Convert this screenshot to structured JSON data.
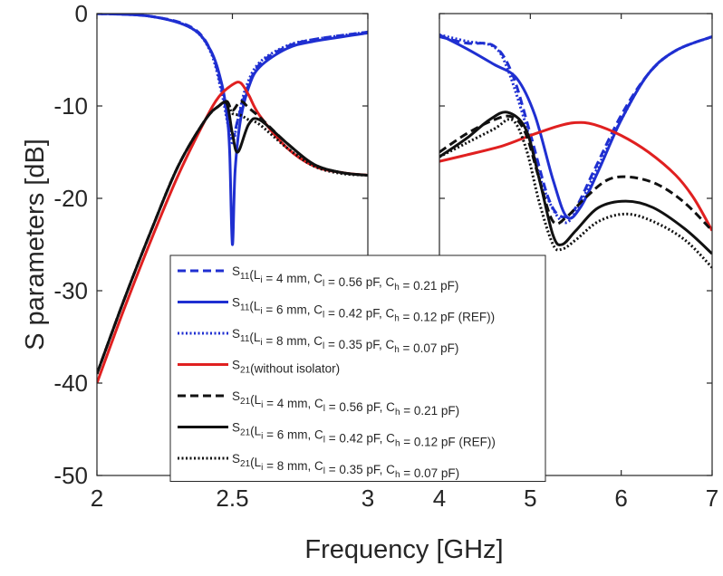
{
  "chart_data": {
    "type": "line",
    "ylabel": "S parameters [dB]",
    "xlabel": "Frequency [GHz]",
    "ylim": [
      -50,
      0
    ],
    "yticks": [
      "0",
      "-10",
      "-20",
      "-30",
      "-40",
      "-50"
    ],
    "grid": false,
    "legend_position": "bottom-center",
    "panels": [
      {
        "xlim": [
          2,
          3
        ],
        "xticks": [
          "2",
          "2.5",
          "3"
        ],
        "series": [
          {
            "name": "S11 (Li = 4 mm, Cl = 0.56 pF, Ch = 0.21 pF)",
            "color": "#1f2fd1",
            "dash": "dashed",
            "x": [
              2,
              2.2,
              2.35,
              2.42,
              2.46,
              2.48,
              2.5,
              2.52,
              2.55,
              2.6,
              2.7,
              2.8,
              3.0
            ],
            "y": [
              0,
              -0.3,
              -1.5,
              -4,
              -8,
              -11,
              -13.5,
              -11.5,
              -8.5,
              -5.5,
              -3.6,
              -2.8,
              -2
            ]
          },
          {
            "name": "S11 (Li = 6 mm, Cl = 0.42 pF, Ch = 0.12 pF (REF))",
            "color": "#1f2fd1",
            "dash": "solid",
            "x": [
              2,
              2.2,
              2.35,
              2.42,
              2.46,
              2.48,
              2.49,
              2.5,
              2.51,
              2.53,
              2.56,
              2.6,
              2.7,
              2.8,
              3.0
            ],
            "y": [
              0,
              -0.3,
              -1.6,
              -4,
              -7.5,
              -11,
              -15,
              -25,
              -17,
              -11.5,
              -8,
              -5.8,
              -3.8,
              -3,
              -2.1
            ]
          },
          {
            "name": "S11 (Li = 8 mm, Cl = 0.35 pF, Ch = 0.07 pF)",
            "color": "#1f2fd1",
            "dash": "dotted",
            "x": [
              2,
              2.2,
              2.35,
              2.42,
              2.46,
              2.48,
              2.5,
              2.52,
              2.55,
              2.6,
              2.7,
              2.8,
              3.0
            ],
            "y": [
              0,
              -0.3,
              -1.6,
              -4.2,
              -8.5,
              -11.5,
              -14,
              -11.5,
              -8,
              -5.3,
              -3.5,
              -2.8,
              -2
            ]
          },
          {
            "name": "S21 (without isolator)",
            "color": "#e02020",
            "dash": "solid",
            "x": [
              2,
              2.1,
              2.2,
              2.3,
              2.4,
              2.45,
              2.5,
              2.53,
              2.56,
              2.6,
              2.7,
              2.8,
              2.9,
              3.0
            ],
            "y": [
              -40,
              -32,
              -24.5,
              -17.5,
              -11.5,
              -9,
              -7.7,
              -7.5,
              -8.8,
              -11,
              -14.5,
              -16.5,
              -17.2,
              -17.5
            ]
          },
          {
            "name": "S21 (Li = 4 mm, Cl = 0.56 pF, Ch = 0.21 pF)",
            "color": "#111111",
            "dash": "dashed",
            "x": [
              2,
              2.1,
              2.2,
              2.3,
              2.4,
              2.45,
              2.48,
              2.5,
              2.53,
              2.56,
              2.6,
              2.7,
              2.8,
              2.9,
              3.0
            ],
            "y": [
              -39,
              -31,
              -23.5,
              -16.5,
              -11.5,
              -10,
              -9.5,
              -10.5,
              -9.5,
              -10.2,
              -11.2,
              -14,
              -16.3,
              -17.2,
              -17.5
            ]
          },
          {
            "name": "S21 (Li = 6 mm, Cl = 0.42 pF, Ch = 0.12 pF (REF))",
            "color": "#111111",
            "dash": "solid",
            "x": [
              2,
              2.1,
              2.2,
              2.3,
              2.4,
              2.45,
              2.48,
              2.5,
              2.52,
              2.56,
              2.6,
              2.7,
              2.8,
              2.9,
              3.0
            ],
            "y": [
              -39,
              -31,
              -23.5,
              -16.5,
              -11.5,
              -10,
              -9.8,
              -13,
              -15,
              -12,
              -11.5,
              -14,
              -16.3,
              -17.2,
              -17.5
            ]
          },
          {
            "name": "S21 (Li = 8 mm, Cl = 0.35 pF, Ch = 0.07 pF)",
            "color": "#111111",
            "dash": "dotted",
            "x": [
              2,
              2.1,
              2.2,
              2.3,
              2.4,
              2.45,
              2.48,
              2.5,
              2.53,
              2.56,
              2.6,
              2.7,
              2.8,
              2.9,
              3.0
            ],
            "y": [
              -39,
              -31,
              -23.5,
              -16.5,
              -11.5,
              -10,
              -9.6,
              -10.8,
              -11,
              -11.5,
              -12,
              -14.5,
              -16.5,
              -17.3,
              -17.5
            ]
          }
        ]
      },
      {
        "xlim": [
          4,
          7
        ],
        "xticks": [
          "4",
          "5",
          "6",
          "7"
        ],
        "series": [
          {
            "name": "S11 (Li = 4 mm, Cl = 0.56 pF, Ch = 0.21 pF)",
            "color": "#1f2fd1",
            "dash": "dashed",
            "x": [
              4,
              4.3,
              4.6,
              4.8,
              5.0,
              5.2,
              5.35,
              5.5,
              5.7,
              6.0,
              6.3,
              6.6,
              7.0
            ],
            "y": [
              -2.5,
              -3.2,
              -3.5,
              -6.5,
              -13,
              -20,
              -22,
              -21,
              -17,
              -11,
              -6.5,
              -4,
              -2.5
            ]
          },
          {
            "name": "S11 (Li = 6 mm, Cl = 0.42 pF, Ch = 0.12 pF (REF))",
            "color": "#1f2fd1",
            "dash": "solid",
            "x": [
              4,
              4.3,
              4.6,
              4.85,
              5.05,
              5.25,
              5.4,
              5.55,
              5.75,
              6.0,
              6.3,
              6.6,
              7.0
            ],
            "y": [
              -2.3,
              -3.8,
              -5.5,
              -7,
              -11,
              -18,
              -22,
              -21,
              -17,
              -11.5,
              -6.5,
              -4,
              -2.5
            ]
          },
          {
            "name": "S11 (Li = 8 mm, Cl = 0.35 pF, Ch = 0.07 pF)",
            "color": "#1f2fd1",
            "dash": "dotted",
            "x": [
              4,
              4.3,
              4.6,
              4.75,
              4.95,
              5.15,
              5.35,
              5.5,
              5.7,
              6.0,
              6.3,
              6.6,
              7.0
            ],
            "y": [
              -2.3,
              -3,
              -3.6,
              -6,
              -12,
              -19,
              -22.5,
              -21.5,
              -17.5,
              -11.5,
              -6.5,
              -4,
              -2.5
            ]
          },
          {
            "name": "S21 (without isolator)",
            "color": "#e02020",
            "dash": "solid",
            "x": [
              4,
              4.3,
              4.7,
              5.0,
              5.3,
              5.5,
              5.7,
              6.0,
              6.3,
              6.6,
              6.8,
              7.0
            ],
            "y": [
              -16,
              -15.3,
              -14.3,
              -13.2,
              -12.2,
              -11.8,
              -12,
              -13.2,
              -15,
              -17.5,
              -20,
              -23.5
            ]
          },
          {
            "name": "S21 (Li = 4 mm, Cl = 0.56 pF, Ch = 0.21 pF)",
            "color": "#111111",
            "dash": "dashed",
            "x": [
              4,
              4.3,
              4.6,
              4.8,
              4.95,
              5.1,
              5.25,
              5.4,
              5.6,
              5.85,
              6.1,
              6.4,
              6.7,
              7.0
            ],
            "y": [
              -15,
              -13,
              -11.5,
              -11.2,
              -13,
              -18,
              -22.5,
              -22,
              -20,
              -18,
              -17.7,
              -18.5,
              -20.5,
              -23.5
            ]
          },
          {
            "name": "S21 (Li = 6 mm, Cl = 0.42 pF, Ch = 0.12 pF (REF))",
            "color": "#111111",
            "dash": "solid",
            "x": [
              4,
              4.3,
              4.55,
              4.75,
              4.95,
              5.1,
              5.25,
              5.35,
              5.5,
              5.75,
              6.05,
              6.35,
              6.7,
              7.0
            ],
            "y": [
              -15.5,
              -13.5,
              -11.5,
              -10.7,
              -12.5,
              -18,
              -24,
              -25,
              -23.5,
              -21,
              -20.3,
              -21,
              -23.3,
              -26
            ]
          },
          {
            "name": "S21 (Li = 8 mm, Cl = 0.35 pF, Ch = 0.07 pF)",
            "color": "#111111",
            "dash": "dotted",
            "x": [
              4,
              4.3,
              4.6,
              4.8,
              4.95,
              5.1,
              5.25,
              5.35,
              5.5,
              5.75,
              6.05,
              6.35,
              6.7,
              7.0
            ],
            "y": [
              -15.5,
              -14,
              -12.5,
              -11.5,
              -14.5,
              -20.5,
              -25,
              -25.5,
              -24.5,
              -22.5,
              -21.7,
              -22.5,
              -24.5,
              -27.5
            ]
          }
        ]
      }
    ],
    "legend": [
      {
        "color": "#1f2fd1",
        "dash": "dashed",
        "sym": "S",
        "sub": "11",
        "text": "(L",
        "isub": "i",
        "text2": " = 4 mm, C",
        "lsub": "l",
        "text3": " = 0.56 pF, C",
        "hsub": "h",
        "text4": " = 0.21 pF)"
      },
      {
        "color": "#1f2fd1",
        "dash": "solid",
        "sym": "S",
        "sub": "11",
        "text": "(L",
        "isub": "i",
        "text2": " = 6 mm, C",
        "lsub": "l",
        "text3": " = 0.42 pF, C",
        "hsub": "h",
        "text4": " = 0.12 pF (REF))"
      },
      {
        "color": "#1f2fd1",
        "dash": "dotted",
        "sym": "S",
        "sub": "11",
        "text": "(L",
        "isub": "i",
        "text2": " = 8 mm, C",
        "lsub": "l",
        "text3": " = 0.35 pF, C",
        "hsub": "h",
        "text4": " = 0.07 pF)"
      },
      {
        "color": "#e02020",
        "dash": "solid",
        "sym": "S",
        "sub": "21",
        "text": "(without isolator)",
        "isub": "",
        "text2": "",
        "lsub": "",
        "text3": "",
        "hsub": "",
        "text4": ""
      },
      {
        "color": "#111111",
        "dash": "dashed",
        "sym": "S",
        "sub": "21",
        "text": "(L",
        "isub": "i",
        "text2": " = 4 mm, C",
        "lsub": "l",
        "text3": " = 0.56 pF, C",
        "hsub": "h",
        "text4": " = 0.21 pF)"
      },
      {
        "color": "#111111",
        "dash": "solid",
        "sym": "S",
        "sub": "21",
        "text": "(L",
        "isub": "i",
        "text2": " = 6 mm, C",
        "lsub": "l",
        "text3": " = 0.42 pF, C",
        "hsub": "h",
        "text4": " = 0.12 pF (REF))"
      },
      {
        "color": "#111111",
        "dash": "dotted",
        "sym": "S",
        "sub": "21",
        "text": "(L",
        "isub": "i",
        "text2": " = 8 mm, C",
        "lsub": "l",
        "text3": " = 0.35 pF, C",
        "hsub": "h",
        "text4": " = 0.07 pF)"
      }
    ]
  }
}
